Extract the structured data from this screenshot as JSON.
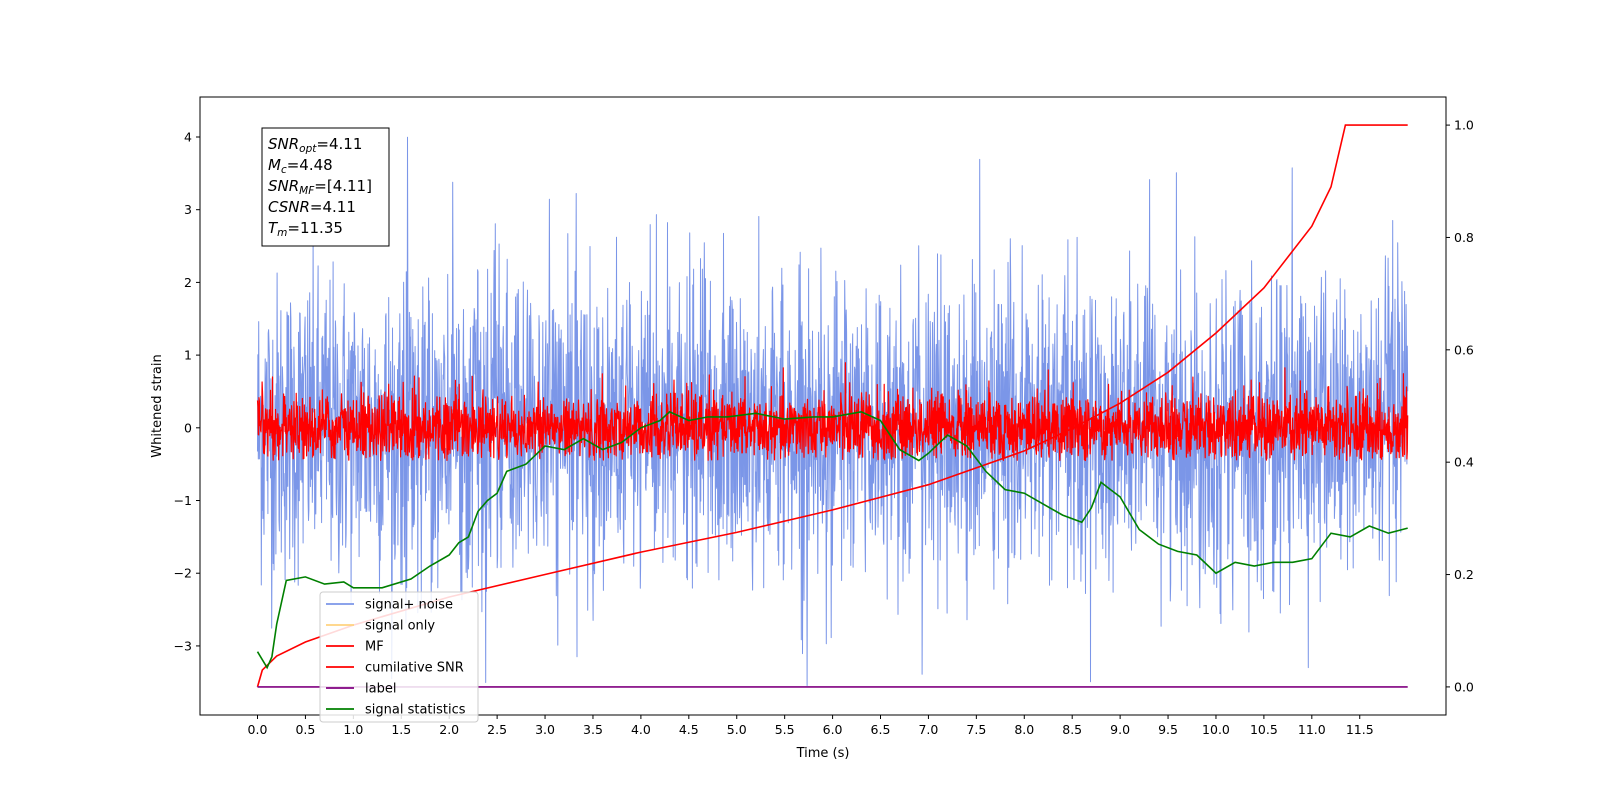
{
  "chart_data": {
    "type": "line",
    "xlabel": "Time (s)",
    "ylabel": "Whitened strain",
    "xlim": [
      -0.6,
      12.4
    ],
    "ylim": [
      -3.95,
      4.55
    ],
    "ylim_right": [
      -0.05,
      1.05
    ],
    "xticks": [
      "0.0",
      "0.5",
      "1.0",
      "1.5",
      "2.0",
      "2.5",
      "3.0",
      "3.5",
      "4.0",
      "4.5",
      "5.0",
      "5.5",
      "6.0",
      "6.5",
      "7.0",
      "7.5",
      "8.0",
      "8.5",
      "9.0",
      "9.5",
      "10.0",
      "10.5",
      "11.0",
      "11.5"
    ],
    "yticks": [
      "4",
      "3",
      "2",
      "1",
      "0",
      "−1",
      "−2",
      "−3"
    ],
    "yticks_right": [
      "1.0",
      "0.8",
      "0.6",
      "0.4",
      "0.2",
      "0.0"
    ],
    "annotation": {
      "lines": [
        {
          "sym": "SNR",
          "sub": "opt",
          "val": "=4.11"
        },
        {
          "sym": "M",
          "sub": "c",
          "val": "=4.48"
        },
        {
          "sym": "SNR",
          "sub": "MF",
          "val": "=[4.11]"
        },
        {
          "sym": "CSNR",
          "sub": "",
          "val": "=4.11"
        },
        {
          "sym": "T",
          "sub": "m",
          "val": "=11.35"
        }
      ]
    },
    "legend_position": "lower-left",
    "series": [
      {
        "name": "signal+ noise",
        "color": "#7b96e8",
        "axis": "left",
        "kind": "noise",
        "t_range": [
          0,
          12.0
        ],
        "mean": 0.0,
        "std": 1.05,
        "ymin": -3.55,
        "ymax": 4.15
      },
      {
        "name": "signal only",
        "color": "#ffd27f",
        "axis": "left",
        "kind": "flat",
        "t_range": [
          0,
          12.0
        ]
      },
      {
        "name": "MF",
        "color": "#ff0000",
        "axis": "left",
        "kind": "noise",
        "t_range": [
          0,
          12.0
        ],
        "mean": 0.0,
        "std": 0.25,
        "ymin": -0.45,
        "ymax": 1.0
      },
      {
        "name": "cumilative SNR",
        "color": "#ff0000",
        "axis": "right",
        "t": [
          0.0,
          0.05,
          0.2,
          0.5,
          1.0,
          2.0,
          3.0,
          4.0,
          5.0,
          6.0,
          7.0,
          8.0,
          8.5,
          9.0,
          9.5,
          10.0,
          10.5,
          11.0,
          11.2,
          11.35,
          12.0
        ],
        "v": [
          0.0,
          0.03,
          0.055,
          0.08,
          0.11,
          0.16,
          0.2,
          0.24,
          0.275,
          0.315,
          0.36,
          0.42,
          0.46,
          0.505,
          0.56,
          0.63,
          0.71,
          0.82,
          0.89,
          1.0,
          1.0
        ]
      },
      {
        "name": "label",
        "color": "#800080",
        "axis": "right",
        "t": [
          0.0,
          12.0
        ],
        "v": [
          0.0,
          0.0
        ]
      },
      {
        "name": "signal statistics",
        "color": "#008000",
        "axis": "left",
        "t": [
          0.0,
          0.1,
          0.15,
          0.2,
          0.3,
          0.5,
          0.7,
          0.9,
          1.0,
          1.3,
          1.6,
          1.8,
          2.0,
          2.1,
          2.2,
          2.3,
          2.4,
          2.5,
          2.6,
          2.8,
          3.0,
          3.2,
          3.4,
          3.6,
          3.8,
          4.0,
          4.2,
          4.3,
          4.5,
          4.7,
          4.9,
          5.2,
          5.5,
          5.8,
          6.0,
          6.3,
          6.5,
          6.7,
          6.9,
          7.0,
          7.2,
          7.4,
          7.6,
          7.8,
          8.0,
          8.2,
          8.4,
          8.6,
          8.7,
          8.8,
          8.9,
          9.0,
          9.2,
          9.4,
          9.6,
          9.8,
          10.0,
          10.2,
          10.4,
          10.6,
          10.8,
          11.0,
          11.2,
          11.4,
          11.6,
          11.8,
          12.0
        ],
        "v": [
          -3.08,
          -3.3,
          -3.15,
          -2.7,
          -2.1,
          -2.05,
          -2.15,
          -2.12,
          -2.2,
          -2.2,
          -2.08,
          -1.9,
          -1.75,
          -1.58,
          -1.5,
          -1.15,
          -1.0,
          -0.9,
          -0.6,
          -0.5,
          -0.25,
          -0.3,
          -0.15,
          -0.3,
          -0.2,
          0.0,
          0.1,
          0.22,
          0.1,
          0.15,
          0.15,
          0.2,
          0.12,
          0.15,
          0.15,
          0.22,
          0.1,
          -0.3,
          -0.45,
          -0.35,
          -0.1,
          -0.25,
          -0.6,
          -0.85,
          -0.9,
          -1.05,
          -1.2,
          -1.3,
          -1.1,
          -0.75,
          -0.85,
          -0.95,
          -1.4,
          -1.6,
          -1.7,
          -1.75,
          -2.0,
          -1.85,
          -1.9,
          -1.85,
          -1.85,
          -1.8,
          -1.45,
          -1.5,
          -1.35,
          -1.45,
          -1.38
        ]
      }
    ]
  }
}
